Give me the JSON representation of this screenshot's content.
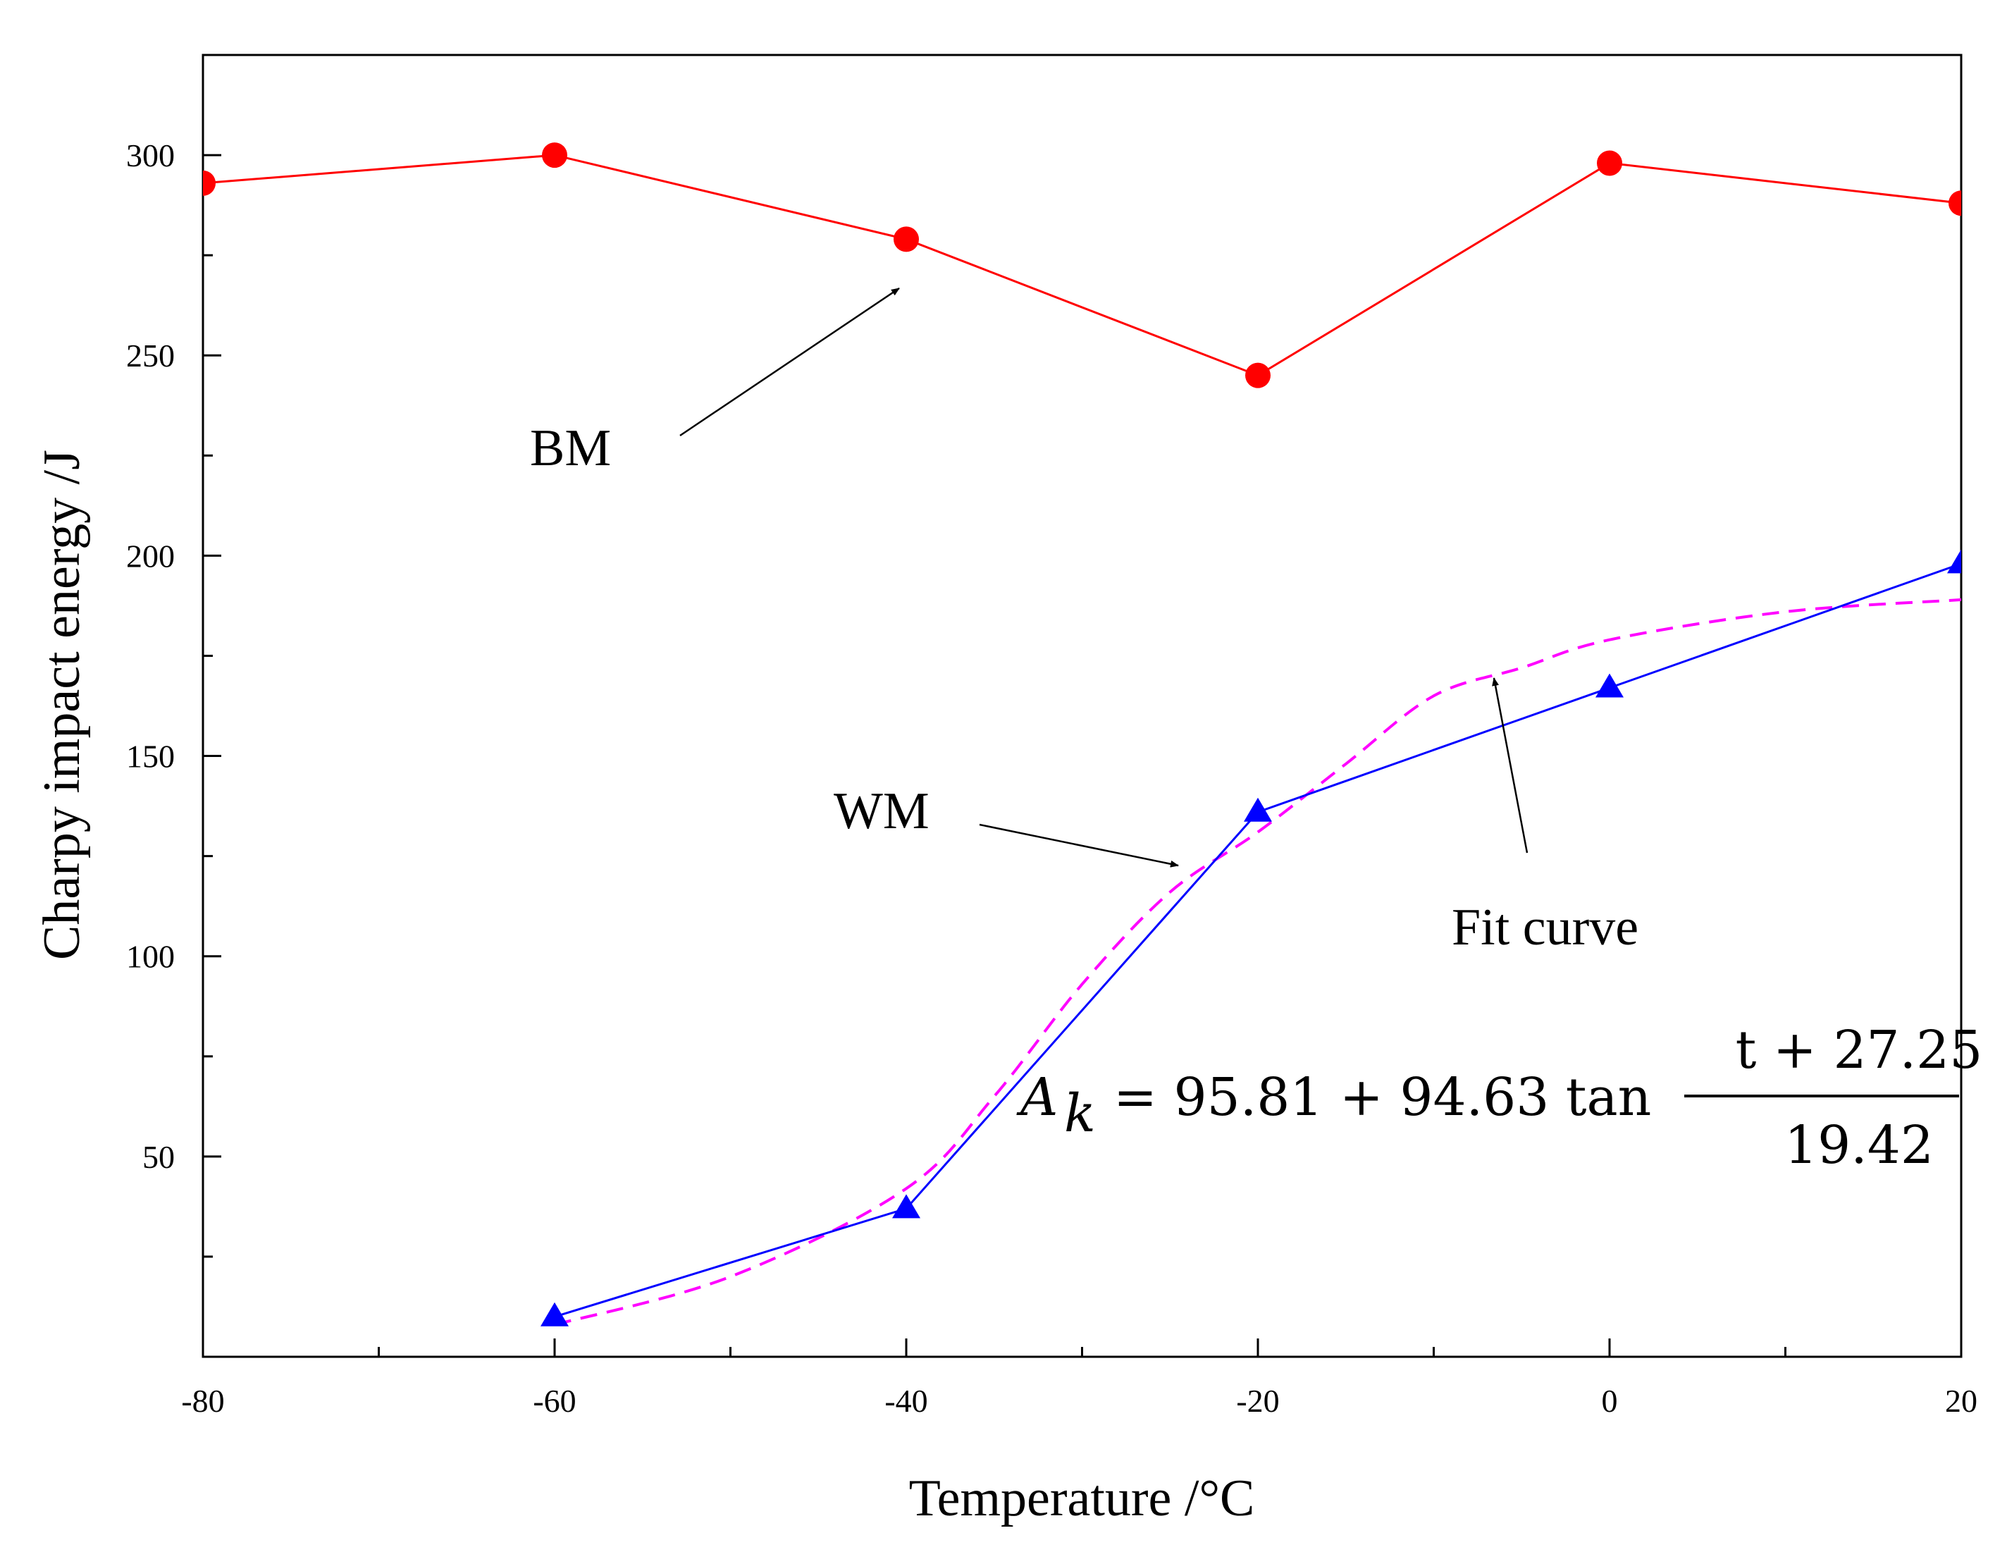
{
  "chart_data": {
    "type": "line",
    "title": "",
    "xlabel": "Temperature /°C",
    "ylabel": "Charpy impact energy /J",
    "xlim": [
      -80,
      20
    ],
    "ylim": [
      0,
      325
    ],
    "x_ticks": [
      -80,
      -60,
      -40,
      -20,
      0,
      20
    ],
    "x_tick_labels": [
      "-80",
      "-60",
      "-40",
      "-20",
      "0",
      "20"
    ],
    "x_minor_ticks": [
      -70,
      -50,
      -30,
      -10,
      10
    ],
    "y_ticks": [
      50,
      100,
      150,
      200,
      250,
      300
    ],
    "y_tick_labels": [
      "50",
      "100",
      "150",
      "200",
      "250",
      "300"
    ],
    "y_minor_ticks": [
      25,
      75,
      125,
      175,
      225,
      275
    ],
    "grid": false,
    "series": [
      {
        "name": "BM",
        "color": "#ff0000",
        "marker": "circle",
        "x": [
          -80,
          -60,
          -40,
          -20,
          0,
          20
        ],
        "values": [
          293,
          300,
          279,
          245,
          298,
          288
        ]
      },
      {
        "name": "WM",
        "color": "#0000ff",
        "marker": "triangle",
        "x": [
          -60,
          -40,
          -20,
          0,
          20
        ],
        "values": [
          10,
          37,
          136,
          167,
          198
        ]
      },
      {
        "name": "Fit curve",
        "color": "#ff00ff",
        "dashed": true,
        "marker": "none",
        "x": [
          -60,
          -50,
          -40,
          -35,
          -30,
          -25,
          -20,
          -15,
          -10,
          -5,
          0,
          10,
          20
        ],
        "values": [
          8,
          20,
          42,
          65,
          93,
          116,
          131,
          148,
          165,
          172,
          179,
          186,
          189
        ]
      }
    ],
    "annotations": {
      "bm_label": "BM",
      "wm_label": "WM",
      "fit_label": "Fit curve",
      "equation": {
        "lhs": "A",
        "lhs_sub": "k",
        "rhs_prefix": "= 95.81 + 94.63 tan",
        "numerator": "t + 27.25",
        "denominator": "19.42"
      }
    }
  }
}
